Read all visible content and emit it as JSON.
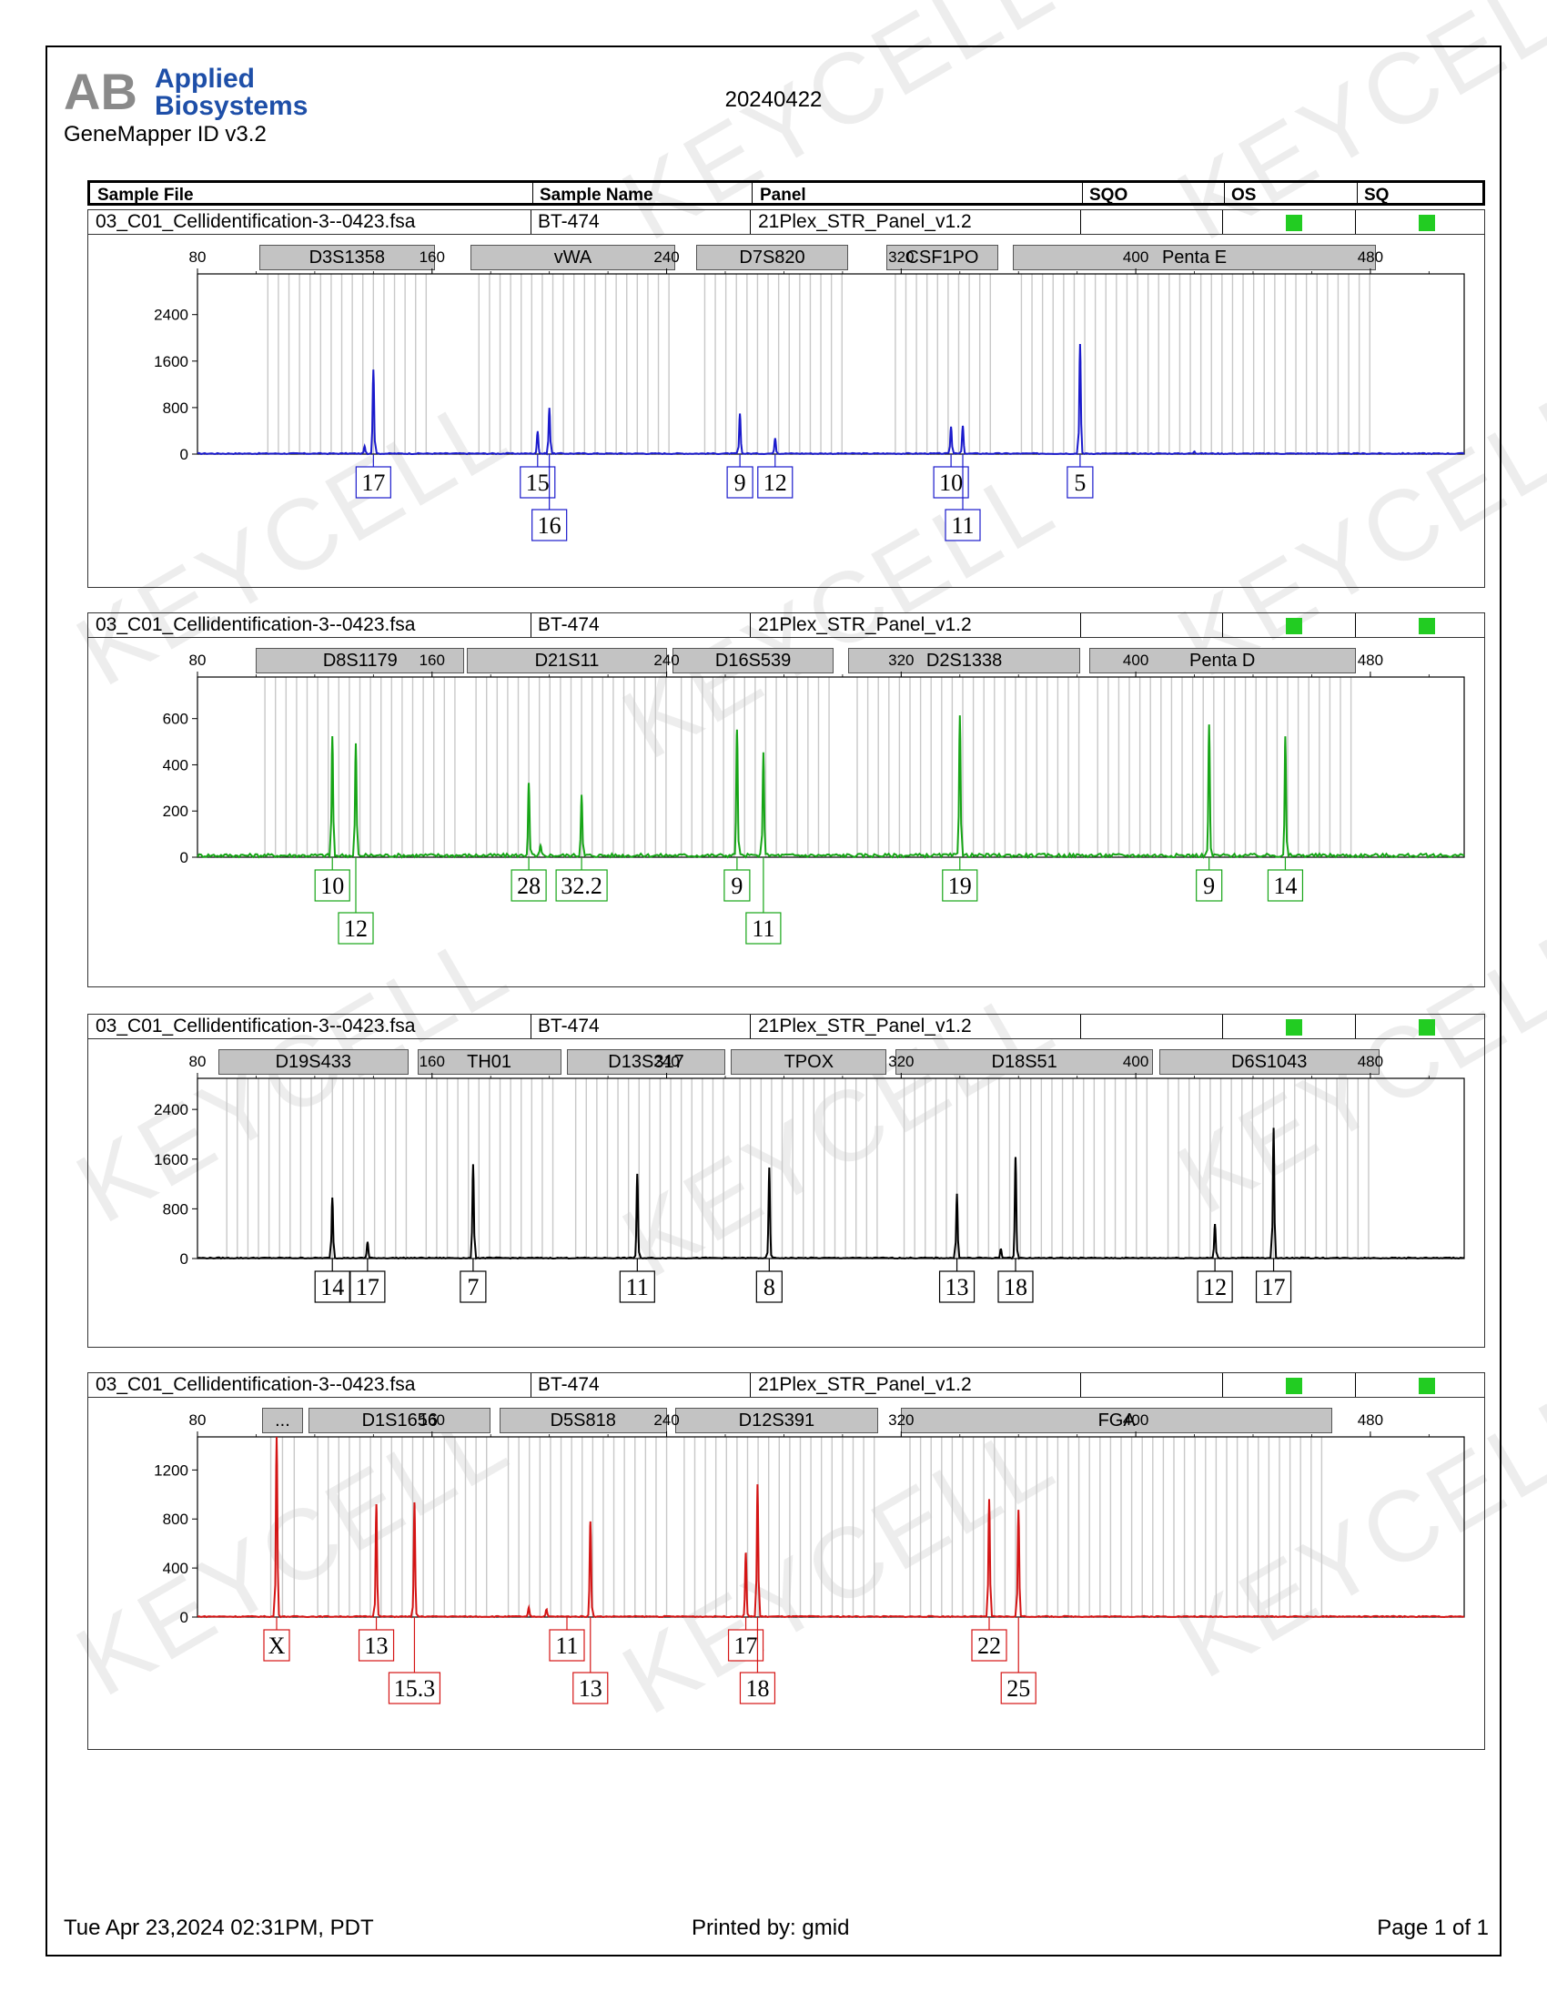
{
  "app": {
    "brand": "Applied Biosystems",
    "logo_letters": "AB",
    "software": "GeneMapper ID v3.2",
    "date": "20240422"
  },
  "header": {
    "cols": [
      "Sample File",
      "Sample Name",
      "Panel",
      "SQO",
      "OS",
      "SQ"
    ]
  },
  "sample": {
    "file": "03_C01_Cellidentification-3--0423.fsa",
    "name": "BT-474",
    "panel": "21Plex_STR_Panel_v1.2"
  },
  "footer": {
    "timestamp": "Tue Apr 23,2024 02:31PM, PDT",
    "printed_by": "Printed by: gmid",
    "page": "Page 1 of 1"
  },
  "watermark": "KEYCELL",
  "colors": {
    "blue": "#1a1acc",
    "green": "#16a516",
    "black": "#000000",
    "red": "#d41414",
    "status_ok": "#22cc22"
  },
  "chart_data": [
    {
      "type": "line",
      "color": "blue",
      "xlim": [
        80,
        512
      ],
      "xticks": [
        80,
        160,
        240,
        320,
        400,
        480
      ],
      "ylim": [
        0,
        3100
      ],
      "yticks": [
        0,
        800,
        1600,
        2400
      ],
      "markers": [
        {
          "label": "D3S1358",
          "from": 101,
          "to": 161
        },
        {
          "label": "vWA",
          "from": 173,
          "to": 243
        },
        {
          "label": "D7S820",
          "from": 250,
          "to": 302
        },
        {
          "label": "CSF1PO",
          "from": 315,
          "to": 353
        },
        {
          "label": "Penta E",
          "from": 358,
          "to": 482
        }
      ],
      "peaks": [
        {
          "x": 140,
          "y": 1450
        },
        {
          "x": 137,
          "y": 120
        },
        {
          "x": 196,
          "y": 380
        },
        {
          "x": 200,
          "y": 780
        },
        {
          "x": 265,
          "y": 680
        },
        {
          "x": 277,
          "y": 270
        },
        {
          "x": 337,
          "y": 470
        },
        {
          "x": 341,
          "y": 470
        },
        {
          "x": 381,
          "y": 1880
        },
        {
          "x": 420,
          "y": 40
        }
      ],
      "alleles": [
        {
          "label": "17",
          "x": 140,
          "row": 1
        },
        {
          "label": "15",
          "x": 196,
          "row": 1
        },
        {
          "label": "16",
          "x": 200,
          "row": 2
        },
        {
          "label": "9",
          "x": 265,
          "row": 1
        },
        {
          "label": "12",
          "x": 277,
          "row": 1
        },
        {
          "label": "10",
          "x": 337,
          "row": 1
        },
        {
          "label": "11",
          "x": 341,
          "row": 2
        },
        {
          "label": "5",
          "x": 381,
          "row": 1
        }
      ]
    },
    {
      "type": "line",
      "color": "green",
      "xlim": [
        80,
        512
      ],
      "xticks": [
        80,
        160,
        240,
        320,
        400,
        480
      ],
      "ylim": [
        0,
        780
      ],
      "yticks": [
        0,
        200,
        400,
        600
      ],
      "markers": [
        {
          "label": "D8S1179",
          "from": 100,
          "to": 171
        },
        {
          "label": "D21S11",
          "from": 172,
          "to": 240
        },
        {
          "label": "D16S539",
          "from": 242,
          "to": 297
        },
        {
          "label": "D2S1338",
          "from": 302,
          "to": 381
        },
        {
          "label": "Penta D",
          "from": 384,
          "to": 475
        }
      ],
      "peaks": [
        {
          "x": 126,
          "y": 520
        },
        {
          "x": 134,
          "y": 480
        },
        {
          "x": 193,
          "y": 310
        },
        {
          "x": 197,
          "y": 40
        },
        {
          "x": 211,
          "y": 260
        },
        {
          "x": 264,
          "y": 550
        },
        {
          "x": 273,
          "y": 440
        },
        {
          "x": 340,
          "y": 610
        },
        {
          "x": 425,
          "y": 560
        },
        {
          "x": 451,
          "y": 510
        }
      ],
      "alleles": [
        {
          "label": "10",
          "x": 126,
          "row": 1
        },
        {
          "label": "12",
          "x": 134,
          "row": 2
        },
        {
          "label": "28",
          "x": 193,
          "row": 1
        },
        {
          "label": "32.2",
          "x": 211,
          "row": 1
        },
        {
          "label": "9",
          "x": 264,
          "row": 1
        },
        {
          "label": "11",
          "x": 273,
          "row": 2
        },
        {
          "label": "19",
          "x": 340,
          "row": 1
        },
        {
          "label": "9",
          "x": 425,
          "row": 1
        },
        {
          "label": "14",
          "x": 451,
          "row": 1
        }
      ]
    },
    {
      "type": "line",
      "color": "black",
      "xlim": [
        80,
        512
      ],
      "xticks": [
        80,
        160,
        240,
        320,
        400,
        480
      ],
      "ylim": [
        0,
        2900
      ],
      "yticks": [
        0,
        800,
        1600,
        2400
      ],
      "markers": [
        {
          "label": "D19S433",
          "from": 87,
          "to": 152
        },
        {
          "label": "TH01",
          "from": 155,
          "to": 204
        },
        {
          "label": "D13S317",
          "from": 206,
          "to": 260
        },
        {
          "label": "TPOX",
          "from": 262,
          "to": 315
        },
        {
          "label": "D18S51",
          "from": 318,
          "to": 406
        },
        {
          "label": "D6S1043",
          "from": 408,
          "to": 483
        }
      ],
      "peaks": [
        {
          "x": 126,
          "y": 980
        },
        {
          "x": 138,
          "y": 260
        },
        {
          "x": 174,
          "y": 1500
        },
        {
          "x": 230,
          "y": 1350
        },
        {
          "x": 275,
          "y": 1450
        },
        {
          "x": 339,
          "y": 1040
        },
        {
          "x": 359,
          "y": 1620
        },
        {
          "x": 354,
          "y": 150
        },
        {
          "x": 427,
          "y": 550
        },
        {
          "x": 447,
          "y": 2100
        }
      ],
      "alleles": [
        {
          "label": "14",
          "x": 126,
          "row": 1
        },
        {
          "label": "17",
          "x": 138,
          "row": 1
        },
        {
          "label": "7",
          "x": 174,
          "row": 1
        },
        {
          "label": "11",
          "x": 230,
          "row": 1
        },
        {
          "label": "8",
          "x": 275,
          "row": 1
        },
        {
          "label": "13",
          "x": 339,
          "row": 1
        },
        {
          "label": "18",
          "x": 359,
          "row": 1
        },
        {
          "label": "12",
          "x": 427,
          "row": 1
        },
        {
          "label": "17",
          "x": 447,
          "row": 1
        }
      ]
    },
    {
      "type": "line",
      "color": "red",
      "xlim": [
        80,
        512
      ],
      "xticks": [
        80,
        160,
        240,
        320,
        400,
        480
      ],
      "ylim": [
        0,
        1470
      ],
      "yticks": [
        0,
        400,
        800,
        1200
      ],
      "markers": [
        {
          "label": "...",
          "from": 102,
          "to": 116
        },
        {
          "label": "D1S1656",
          "from": 118,
          "to": 180
        },
        {
          "label": "D5S818",
          "from": 183,
          "to": 240
        },
        {
          "label": "D12S391",
          "from": 243,
          "to": 312
        },
        {
          "label": "FGA",
          "from": 320,
          "to": 467
        }
      ],
      "peaks": [
        {
          "x": 107,
          "y": 1470
        },
        {
          "x": 141,
          "y": 920
        },
        {
          "x": 154,
          "y": 930
        },
        {
          "x": 193,
          "y": 70
        },
        {
          "x": 199,
          "y": 60
        },
        {
          "x": 214,
          "y": 780
        },
        {
          "x": 267,
          "y": 520
        },
        {
          "x": 271,
          "y": 1080
        },
        {
          "x": 350,
          "y": 960
        },
        {
          "x": 360,
          "y": 870
        }
      ],
      "alleles": [
        {
          "label": "X",
          "x": 107,
          "row": 1
        },
        {
          "label": "13",
          "x": 141,
          "row": 1
        },
        {
          "label": "15.3",
          "x": 154,
          "row": 2
        },
        {
          "label": "11",
          "x": 206,
          "row": 1
        },
        {
          "label": "13",
          "x": 214,
          "row": 2
        },
        {
          "label": "17",
          "x": 267,
          "row": 1
        },
        {
          "label": "18",
          "x": 271,
          "row": 2
        },
        {
          "label": "22",
          "x": 350,
          "row": 1
        },
        {
          "label": "25",
          "x": 360,
          "row": 2
        }
      ]
    }
  ]
}
